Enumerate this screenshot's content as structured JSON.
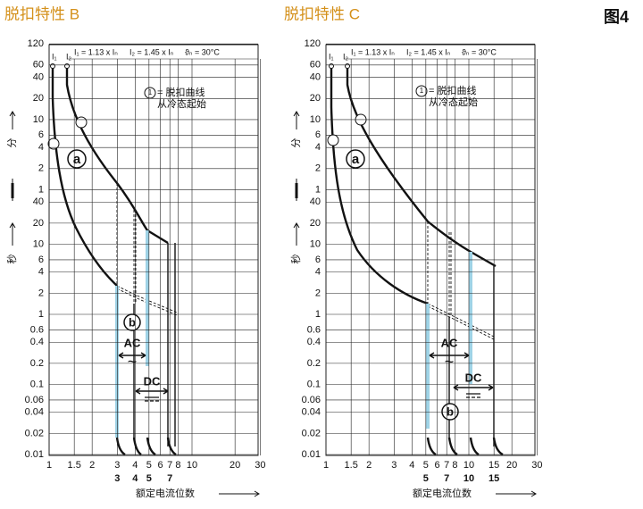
{
  "figure_label": "图4",
  "panels": [
    {
      "title": "脱扣特性 B",
      "xticks": [
        1,
        1.5,
        2,
        3,
        4,
        5,
        6,
        7,
        8,
        10,
        20,
        30
      ],
      "multiples": [
        3,
        4,
        5,
        7
      ],
      "min_ticks": [
        120,
        60,
        40,
        20,
        10,
        6,
        4,
        2,
        1
      ],
      "sec_ticks": [
        40,
        20,
        10,
        6,
        4,
        2,
        1,
        0.6,
        0.4,
        0.2,
        0.1,
        0.06,
        0.04,
        0.02,
        0.01
      ],
      "i1": "I₁",
      "i2": "I₂",
      "header": [
        "I₁ = 1.13 x Iₙ",
        "I₂ = 1.45 x Iₙ",
        "ϑₙ = 30°C"
      ],
      "legend_mark": "1",
      "legend": [
        "= 脱扣曲线",
        "从冷态起始"
      ],
      "minutes": "分",
      "seconds": "秒",
      "a": "a",
      "b": "b",
      "ac": "AC",
      "dc": "DC",
      "wave": "~",
      "xlabel": "额定电流位数"
    },
    {
      "title": "脱扣特性 C",
      "xticks": [
        1,
        1.5,
        2,
        3,
        4,
        5,
        6,
        7,
        8,
        10,
        15,
        20,
        30
      ],
      "multiples": [
        5,
        7,
        10,
        15
      ],
      "min_ticks": [
        120,
        60,
        40,
        20,
        10,
        6,
        4,
        2,
        1
      ],
      "sec_ticks": [
        40,
        20,
        10,
        6,
        4,
        2,
        1,
        0.6,
        0.4,
        0.2,
        0.1,
        0.06,
        0.04,
        0.02,
        0.01
      ],
      "i1": "I₁",
      "i2": "I₂",
      "header": [
        "I₁ = 1.13 x Iₙ",
        "I₂ = 1.45 x Iₙ",
        "ϑₙ = 30°C"
      ],
      "legend_mark": "1",
      "legend": [
        "= 脱扣曲线",
        "从冷态起始"
      ],
      "minutes": "分",
      "seconds": "秒",
      "a": "a",
      "b": "b",
      "ac": "AC",
      "dc": "DC",
      "wave": "~",
      "xlabel": "额定电流位数"
    }
  ]
}
